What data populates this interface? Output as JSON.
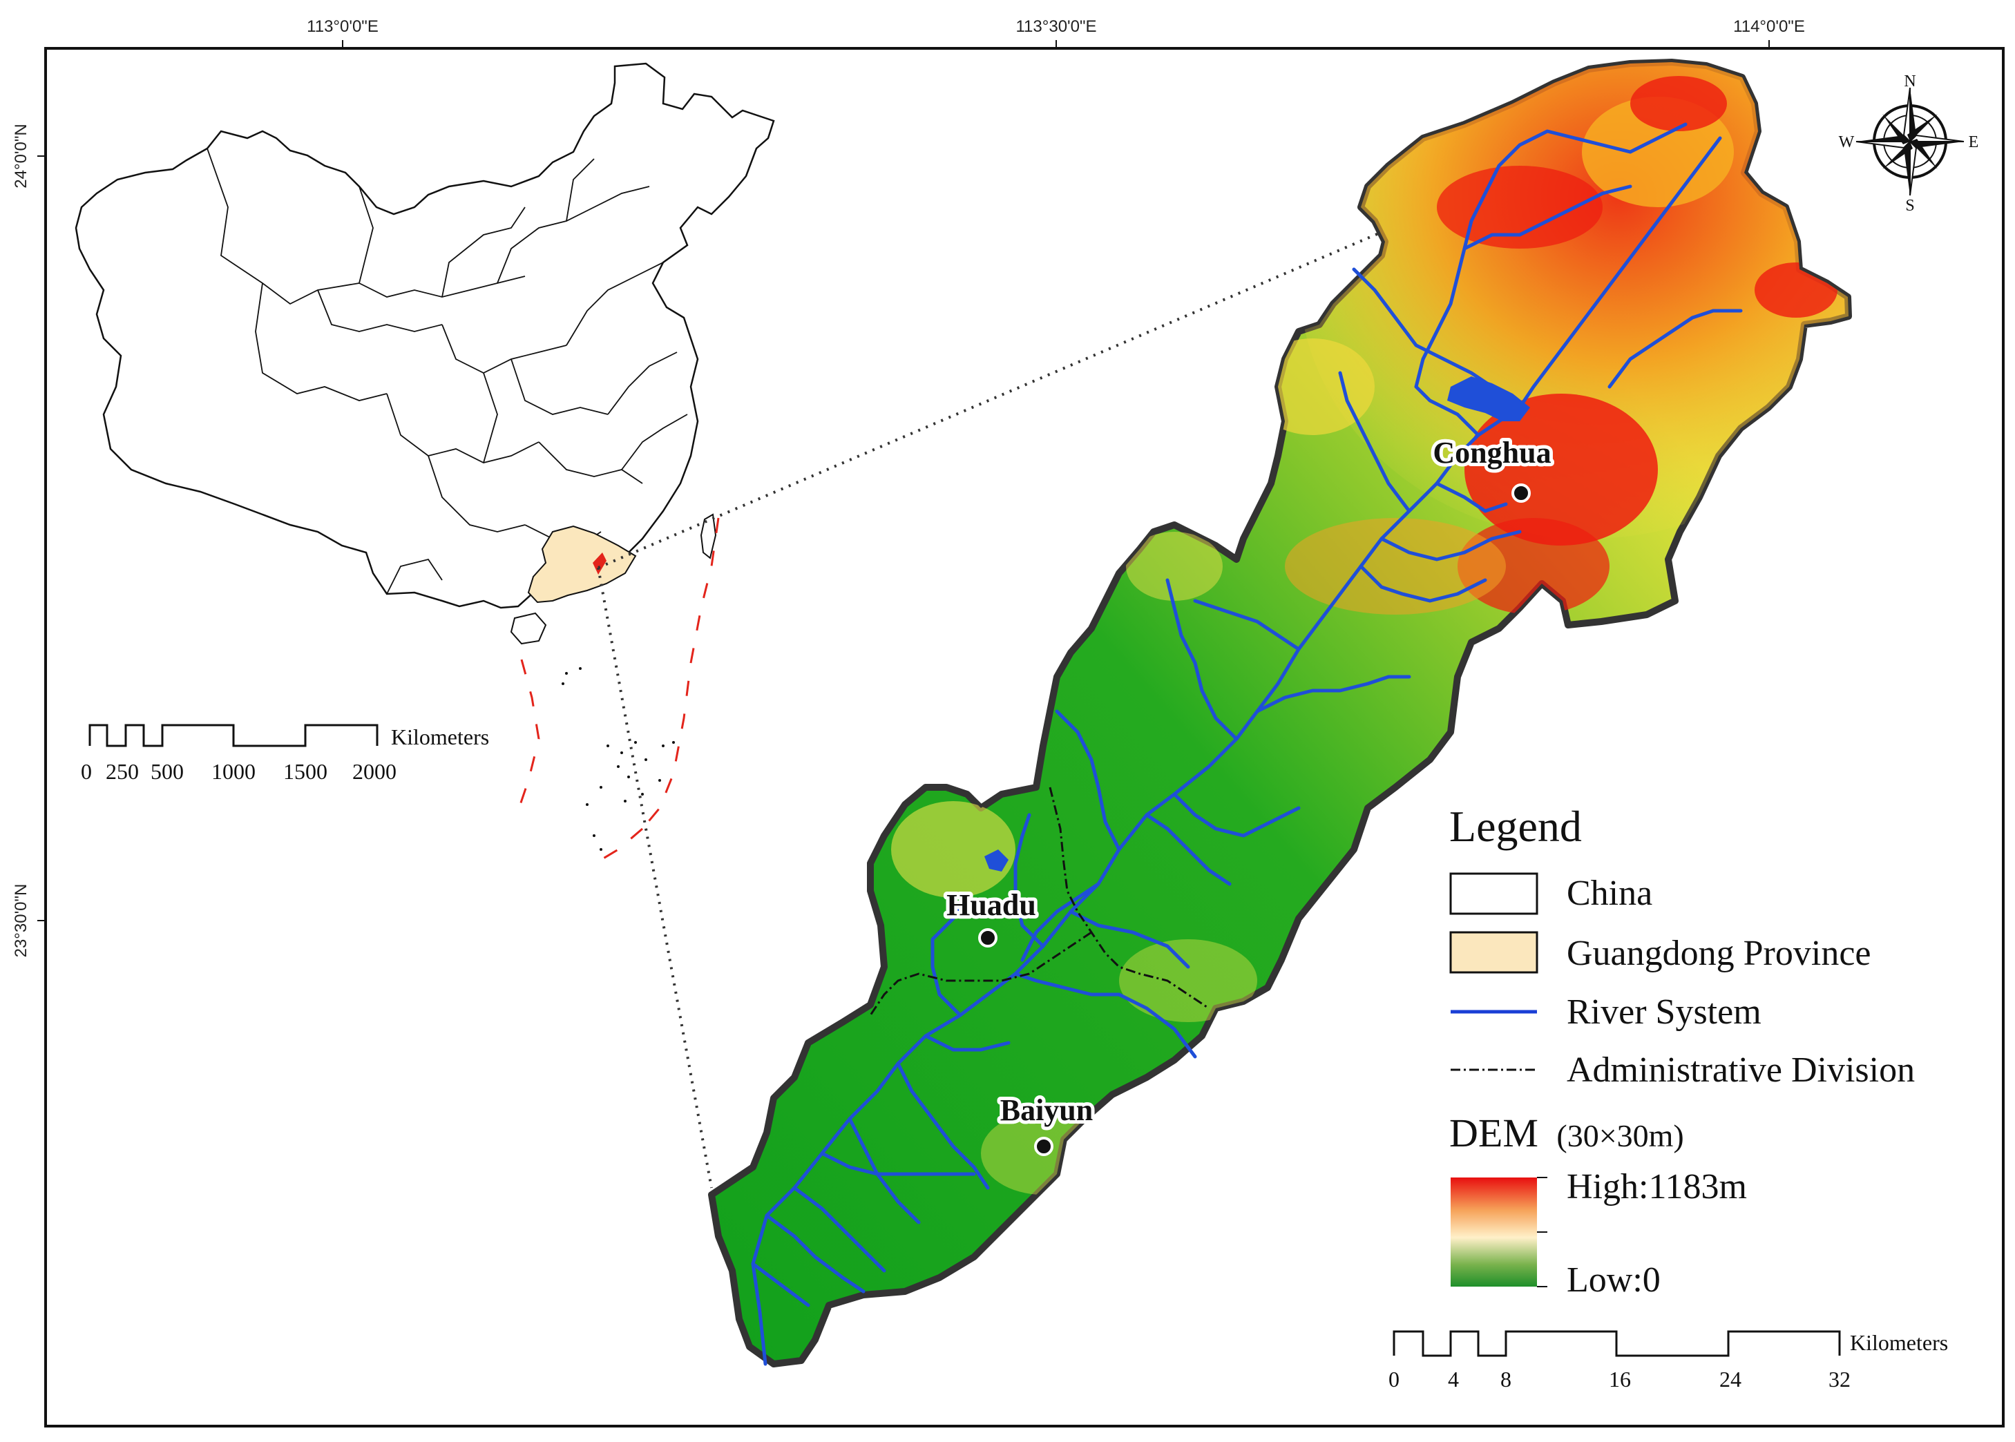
{
  "graticule": {
    "top": [
      "113°0'0\"E",
      "113°30'0\"E",
      "114°0'0\"E"
    ],
    "left": [
      "24°0'0\"N",
      "23°30'0\"N"
    ]
  },
  "compass": {
    "n": "N",
    "s": "S",
    "e": "E",
    "w": "W"
  },
  "cities": [
    {
      "name": "Conghua"
    },
    {
      "name": "Huadu"
    },
    {
      "name": "Baiyun"
    }
  ],
  "legend": {
    "title": "Legend",
    "items": [
      {
        "label": "China",
        "swatch": "#ffffff"
      },
      {
        "label": "Guangdong Province",
        "swatch": "#fbe7bd"
      },
      {
        "label": "River System",
        "swatch": "#1a3fd6"
      },
      {
        "label": "Administrative Division",
        "swatch": "#111111"
      }
    ],
    "dem_title": "DEM",
    "dem_unit": "(30×30m)",
    "dem_high": "High:1183m",
    "dem_low": "Low:0",
    "dem_colors": [
      "#e80f0f",
      "#f6a35a",
      "#fff0c9",
      "#78b24c",
      "#1e8f2a"
    ]
  },
  "scale_large": {
    "unit": "Kilometers",
    "ticks": [
      "0",
      "4",
      "8",
      "16",
      "24",
      "32"
    ]
  },
  "scale_small": {
    "unit": "Kilometers",
    "ticks": [
      "0",
      "250",
      "500",
      "1000",
      "1500",
      "2000"
    ]
  },
  "colors": {
    "river": "#1f4fd8",
    "dem_green": "#13a51d",
    "dem_yellow": "#f0e24a",
    "dem_red": "#ee1d10",
    "guangdong": "#fbe7bd",
    "sea_boundary": "#e3241b"
  }
}
